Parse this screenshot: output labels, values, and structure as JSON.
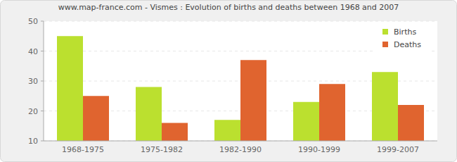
{
  "chart_data": {
    "type": "bar",
    "title": "www.map-france.com - Vismes : Evolution of births and deaths between 1968 and 2007",
    "categories": [
      "1968-1975",
      "1975-1982",
      "1982-1990",
      "1990-1999",
      "1999-2007"
    ],
    "series": [
      {
        "name": "Births",
        "color": "#bbe02f",
        "values": [
          45,
          28,
          17,
          23,
          33
        ]
      },
      {
        "name": "Deaths",
        "color": "#e0642f",
        "values": [
          25,
          16,
          37,
          29,
          22
        ]
      }
    ],
    "ylim": [
      10,
      50
    ],
    "yticks": [
      10,
      20,
      30,
      40,
      50
    ],
    "grid": true,
    "legend": "top-right"
  }
}
